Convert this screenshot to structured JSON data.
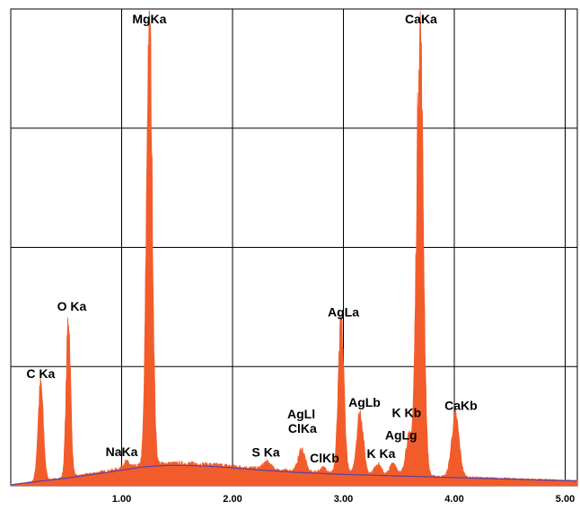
{
  "chart_data": {
    "type": "area",
    "title": "",
    "xlabel": "",
    "ylabel": "",
    "xlim": [
      0,
      5.1
    ],
    "ylim": [
      0,
      100
    ],
    "grid": true,
    "x_ticks": [
      "1.00",
      "2.00",
      "3.00",
      "4.00",
      "5.00"
    ],
    "x_tick_values": [
      1,
      2,
      3,
      4,
      5
    ],
    "colors": {
      "spectrum_fill": "#f25c2b",
      "background_curve": "#5a3fa8",
      "grid": "#000000"
    },
    "background": {
      "x": [
        0.0,
        0.2,
        0.5,
        0.8,
        1.0,
        1.2,
        1.4,
        1.6,
        1.8,
        2.0,
        2.2,
        2.4,
        2.6,
        2.8,
        3.0,
        3.3,
        3.6,
        3.9,
        4.2,
        4.5,
        4.8,
        5.1
      ],
      "y": [
        0.2,
        0.8,
        1.6,
        2.6,
        3.3,
        4.0,
        4.3,
        4.3,
        4.1,
        3.8,
        3.4,
        3.1,
        2.8,
        2.6,
        2.4,
        2.2,
        2.0,
        1.8,
        1.6,
        1.4,
        1.2,
        1.0
      ]
    },
    "peaks": [
      {
        "label": "C Ka",
        "energy": 0.27,
        "height": 20.5,
        "width": 0.024
      },
      {
        "label": "O Ka",
        "energy": 0.52,
        "height": 34.0,
        "width": 0.02
      },
      {
        "label": "NaKa",
        "energy": 1.04,
        "height": 1.3,
        "width": 0.03
      },
      {
        "label": "MgKa",
        "energy": 1.25,
        "height": 95.5,
        "width": 0.026
      },
      {
        "label": "S Ka",
        "energy": 2.31,
        "height": 1.5,
        "width": 0.035
      },
      {
        "label": "AgLl",
        "energy": 2.63,
        "height": 1.8,
        "width": 0.03
      },
      {
        "label": "ClKa",
        "energy": 2.62,
        "height": 3.0,
        "width": 0.03
      },
      {
        "label": "ClKb",
        "energy": 2.82,
        "height": 1.0,
        "width": 0.03
      },
      {
        "label": "AgLa",
        "energy": 2.98,
        "height": 32.0,
        "width": 0.026
      },
      {
        "label": "AgLb",
        "energy": 3.15,
        "height": 13.0,
        "width": 0.03
      },
      {
        "label": "K Ka",
        "energy": 3.31,
        "height": 2.3,
        "width": 0.03
      },
      {
        "label": "AgLg",
        "energy": 3.45,
        "height": 2.5,
        "width": 0.03
      },
      {
        "label": "K Kb",
        "energy": 3.59,
        "height": 8.0,
        "width": 0.03
      },
      {
        "label": "CaKa",
        "energy": 3.69,
        "height": 96.0,
        "width": 0.03
      },
      {
        "label": "CaKb",
        "energy": 4.01,
        "height": 13.0,
        "width": 0.034
      }
    ],
    "labels": [
      {
        "text": "C Ka",
        "energy": 0.27
      },
      {
        "text": "O Ka",
        "energy": 0.55
      },
      {
        "text": "NaKa",
        "energy": 1.0
      },
      {
        "text": "MgKa",
        "energy": 1.25
      },
      {
        "text": "S Ka",
        "energy": 2.3
      },
      {
        "text": "AgLl",
        "energy": 2.62
      },
      {
        "text": "ClKa",
        "energy": 2.63
      },
      {
        "text": "ClKb",
        "energy": 2.83
      },
      {
        "text": "AgLa",
        "energy": 3.0
      },
      {
        "text": "AgLb",
        "energy": 3.19
      },
      {
        "text": "K Ka",
        "energy": 3.34
      },
      {
        "text": "AgLg",
        "energy": 3.52
      },
      {
        "text": "K Kb",
        "energy": 3.57
      },
      {
        "text": "CaKa",
        "energy": 3.7
      },
      {
        "text": "CaKb",
        "energy": 4.06
      }
    ]
  }
}
